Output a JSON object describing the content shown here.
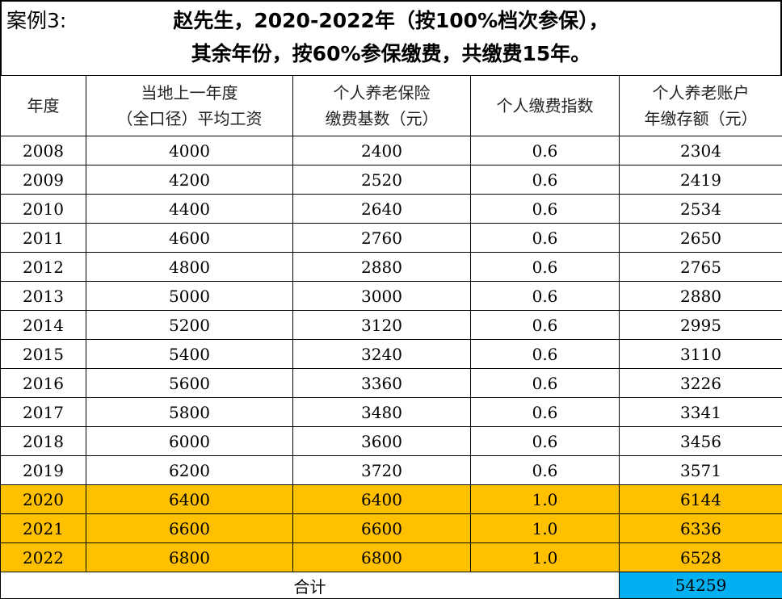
{
  "title": {
    "case_label": "案例3:",
    "line1": "赵先生，2020-2022年（按100%档次参保），",
    "line2": "其余年份，按60%参保缴费，共缴费15年。"
  },
  "table": {
    "headers": [
      {
        "line1": "年度",
        "line2": ""
      },
      {
        "line1": "当地上一年度",
        "line2": "（全口径）平均工资"
      },
      {
        "line1": "个人养老保险",
        "line2": "缴费基数（元）"
      },
      {
        "line1": "个人缴费指数",
        "line2": ""
      },
      {
        "line1": "个人养老账户",
        "line2": "年缴存额（元）"
      }
    ],
    "rows": [
      {
        "year": "2008",
        "avg_wage": "4000",
        "base": "2400",
        "index": "0.6",
        "deposit": "2304",
        "highlight": false
      },
      {
        "year": "2009",
        "avg_wage": "4200",
        "base": "2520",
        "index": "0.6",
        "deposit": "2419",
        "highlight": false
      },
      {
        "year": "2010",
        "avg_wage": "4400",
        "base": "2640",
        "index": "0.6",
        "deposit": "2534",
        "highlight": false
      },
      {
        "year": "2011",
        "avg_wage": "4600",
        "base": "2760",
        "index": "0.6",
        "deposit": "2650",
        "highlight": false
      },
      {
        "year": "2012",
        "avg_wage": "4800",
        "base": "2880",
        "index": "0.6",
        "deposit": "2765",
        "highlight": false
      },
      {
        "year": "2013",
        "avg_wage": "5000",
        "base": "3000",
        "index": "0.6",
        "deposit": "2880",
        "highlight": false
      },
      {
        "year": "2014",
        "avg_wage": "5200",
        "base": "3120",
        "index": "0.6",
        "deposit": "2995",
        "highlight": false
      },
      {
        "year": "2015",
        "avg_wage": "5400",
        "base": "3240",
        "index": "0.6",
        "deposit": "3110",
        "highlight": false
      },
      {
        "year": "2016",
        "avg_wage": "5600",
        "base": "3360",
        "index": "0.6",
        "deposit": "3226",
        "highlight": false
      },
      {
        "year": "2017",
        "avg_wage": "5800",
        "base": "3480",
        "index": "0.6",
        "deposit": "3341",
        "highlight": false
      },
      {
        "year": "2018",
        "avg_wage": "6000",
        "base": "3600",
        "index": "0.6",
        "deposit": "3456",
        "highlight": false
      },
      {
        "year": "2019",
        "avg_wage": "6200",
        "base": "3720",
        "index": "0.6",
        "deposit": "3571",
        "highlight": false
      },
      {
        "year": "2020",
        "avg_wage": "6400",
        "base": "6400",
        "index": "1.0",
        "deposit": "6144",
        "highlight": true
      },
      {
        "year": "2021",
        "avg_wage": "6600",
        "base": "6600",
        "index": "1.0",
        "deposit": "6336",
        "highlight": true
      },
      {
        "year": "2022",
        "avg_wage": "6800",
        "base": "6800",
        "index": "1.0",
        "deposit": "6528",
        "highlight": true
      }
    ],
    "footer": {
      "label": "合计",
      "total": "54259"
    }
  },
  "colors": {
    "highlight_row": "#FFC000",
    "total_cell": "#00B0F0"
  }
}
